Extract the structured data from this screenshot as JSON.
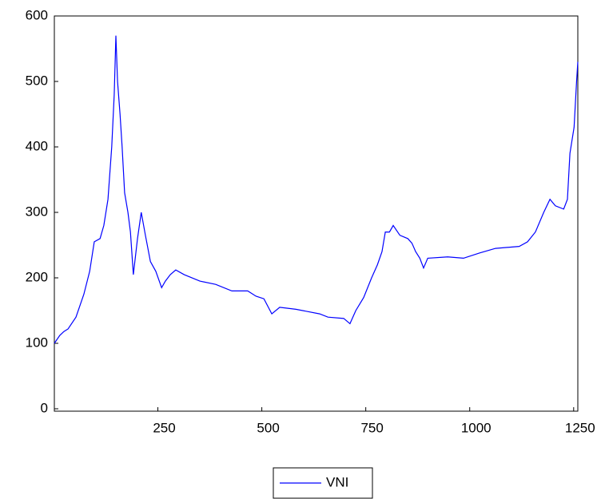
{
  "chart_data": {
    "type": "line",
    "x": [
      1,
      14,
      24,
      34,
      53,
      72,
      86,
      97,
      111,
      120,
      130,
      139,
      145,
      149,
      153,
      159,
      164,
      170,
      178,
      184,
      191,
      201,
      210,
      220,
      232,
      245,
      259,
      268,
      280,
      293,
      313,
      351,
      389,
      428,
      466,
      486,
      505,
      524,
      543,
      582,
      639,
      659,
      697,
      712,
      726,
      745,
      764,
      778,
      789,
      797,
      807,
      816,
      832,
      851,
      861,
      870,
      880,
      889,
      899,
      947,
      985,
      1024,
      1062,
      1119,
      1139,
      1158,
      1178,
      1193,
      1206,
      1226,
      1235,
      1241,
      1251,
      1257,
      1260
    ],
    "series": [
      {
        "name": "VNI",
        "color": "#0000ff",
        "values": [
          100,
          112,
          118,
          122,
          140,
          175,
          210,
          255,
          260,
          280,
          320,
          400,
          480,
          570,
          500,
          450,
          400,
          330,
          300,
          270,
          205,
          260,
          300,
          265,
          225,
          210,
          185,
          195,
          205,
          212,
          205,
          195,
          190,
          180,
          180,
          172,
          168,
          145,
          155,
          152,
          145,
          140,
          138,
          130,
          150,
          170,
          200,
          220,
          240,
          270,
          270,
          280,
          265,
          260,
          253,
          240,
          230,
          215,
          230,
          232,
          230,
          238,
          245,
          248,
          255,
          270,
          300,
          320,
          310,
          305,
          320,
          390,
          430,
          500,
          530
        ]
      }
    ],
    "xlim": [
      1,
      1260
    ],
    "ylim": [
      0,
      600
    ],
    "xticks": [
      250,
      500,
      750,
      1000,
      1250
    ],
    "yticks": [
      0,
      100,
      200,
      300,
      400,
      500,
      600
    ],
    "grid": false,
    "legend": "bottom"
  }
}
